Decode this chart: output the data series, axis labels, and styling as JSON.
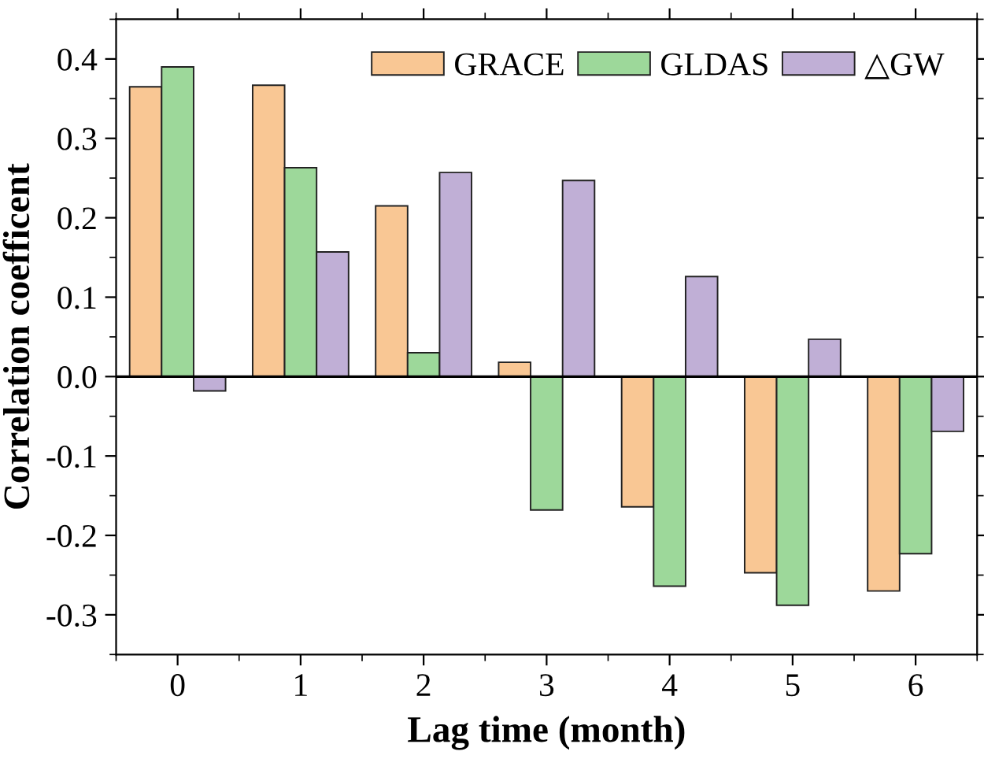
{
  "chart_data": {
    "type": "bar",
    "xlabel": "Lag time (month)",
    "ylabel": "Correlation coefficent",
    "categories": [
      "0",
      "1",
      "2",
      "3",
      "4",
      "5",
      "6"
    ],
    "series": [
      {
        "name": "GRACE",
        "color": "#f9c794",
        "values": [
          0.365,
          0.367,
          0.215,
          0.018,
          -0.164,
          -0.247,
          -0.27
        ]
      },
      {
        "name": "GLDAS",
        "color": "#9dd89a",
        "values": [
          0.39,
          0.263,
          0.03,
          -0.168,
          -0.264,
          -0.288,
          -0.223
        ]
      },
      {
        "name": "△GW",
        "color": "#c0afd6",
        "values": [
          -0.018,
          0.157,
          0.257,
          0.247,
          0.126,
          0.047,
          -0.069
        ]
      }
    ],
    "ylim": [
      -0.35,
      0.45
    ],
    "yticks": [
      {
        "value": -0.3,
        "label": "-0.3"
      },
      {
        "value": -0.2,
        "label": "-0.2"
      },
      {
        "value": -0.1,
        "label": "-0.1"
      },
      {
        "value": 0.0,
        "label": "0.0"
      },
      0.1,
      0.2,
      0.3,
      0.4
    ],
    "ref_lines": [
      {
        "axis": "y",
        "value": 0,
        "color": "#000000"
      }
    ],
    "legend": "top right",
    "grid": false
  }
}
